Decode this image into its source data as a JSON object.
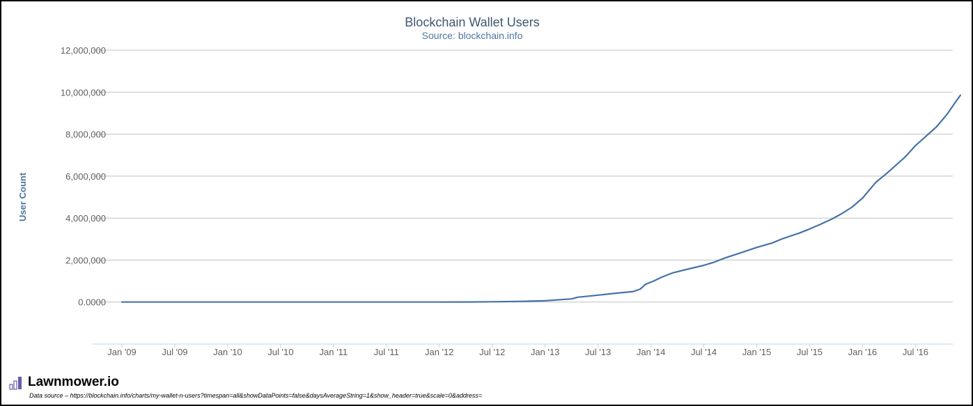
{
  "chart_data": {
    "type": "line",
    "title": "Blockchain Wallet Users",
    "subtitle": "Source: blockchain.info",
    "xlabel": "",
    "ylabel": "User Count",
    "ylim": [
      -2000000,
      12000000
    ],
    "yticks": [
      0,
      2000000,
      4000000,
      6000000,
      8000000,
      10000000,
      12000000
    ],
    "ytick_labels": [
      "0.0000",
      "2,000,000",
      "4,000,000",
      "6,000,000",
      "8,000,000",
      "10,000,000",
      "12,000,000"
    ],
    "xlim": [
      0,
      94
    ],
    "xticks": [
      {
        "t": 0,
        "label": "Jan '09"
      },
      {
        "t": 6,
        "label": "Jul '09"
      },
      {
        "t": 12,
        "label": "Jan '10"
      },
      {
        "t": 18,
        "label": "Jul '10"
      },
      {
        "t": 24,
        "label": "Jan '11"
      },
      {
        "t": 30,
        "label": "Jul '11"
      },
      {
        "t": 36,
        "label": "Jan '12"
      },
      {
        "t": 42,
        "label": "Jul '12"
      },
      {
        "t": 48,
        "label": "Jan '13"
      },
      {
        "t": 54,
        "label": "Jul '13"
      },
      {
        "t": 60,
        "label": "Jan '14"
      },
      {
        "t": 66,
        "label": "Jul '14"
      },
      {
        "t": 72,
        "label": "Jan '15"
      },
      {
        "t": 78,
        "label": "Jul '15"
      },
      {
        "t": 84,
        "label": "Jan '16"
      },
      {
        "t": 90,
        "label": "Jul '16"
      }
    ],
    "series": [
      {
        "name": "User Count",
        "color": "#4572a7",
        "points": [
          [
            0,
            0
          ],
          [
            12,
            0
          ],
          [
            24,
            0
          ],
          [
            36,
            0
          ],
          [
            39.5,
            5000
          ],
          [
            42,
            15000
          ],
          [
            45,
            30000
          ],
          [
            48,
            60000
          ],
          [
            51,
            150000
          ],
          [
            51.7,
            230000
          ],
          [
            54,
            330000
          ],
          [
            56,
            420000
          ],
          [
            58,
            500000
          ],
          [
            58.8,
            620000
          ],
          [
            59.4,
            850000
          ],
          [
            60.3,
            1000000
          ],
          [
            61.2,
            1180000
          ],
          [
            62.4,
            1380000
          ],
          [
            64,
            1550000
          ],
          [
            66,
            1750000
          ],
          [
            67.2,
            1900000
          ],
          [
            68.4,
            2100000
          ],
          [
            70.2,
            2350000
          ],
          [
            72,
            2600000
          ],
          [
            73.8,
            2820000
          ],
          [
            75,
            3030000
          ],
          [
            76.8,
            3280000
          ],
          [
            78,
            3480000
          ],
          [
            79.2,
            3700000
          ],
          [
            80.4,
            3930000
          ],
          [
            81.6,
            4200000
          ],
          [
            82.8,
            4520000
          ],
          [
            84,
            4950000
          ],
          [
            84.8,
            5350000
          ],
          [
            85.5,
            5700000
          ],
          [
            86.8,
            6150000
          ],
          [
            87.6,
            6450000
          ],
          [
            88.8,
            6900000
          ],
          [
            90,
            7450000
          ],
          [
            91.2,
            7900000
          ],
          [
            92.4,
            8350000
          ],
          [
            93.6,
            8950000
          ],
          [
            94.5,
            9500000
          ],
          [
            95.1,
            9850000
          ]
        ]
      }
    ]
  },
  "footer": {
    "brand": "Lawnmower.io",
    "brand_icon": "bar-chart-icon",
    "source_note": "Data source – https://blockchain.info/charts/my-wallet-n-users?timespan=all&showDataPoints=false&daysAverageString=1&show_header=true&scale=0&address="
  }
}
